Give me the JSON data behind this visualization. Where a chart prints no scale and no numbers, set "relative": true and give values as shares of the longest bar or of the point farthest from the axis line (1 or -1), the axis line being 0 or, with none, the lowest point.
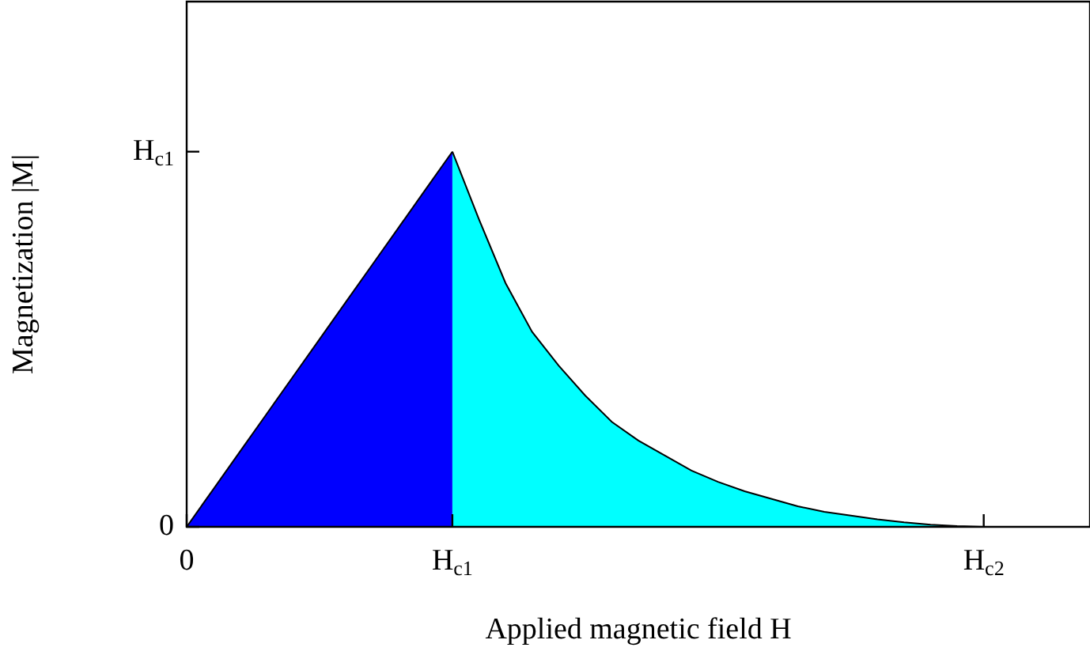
{
  "chart_data": {
    "type": "area",
    "xlabel": "Applied magnetic field H",
    "ylabel": "Magnetization |M|",
    "relative": true,
    "categories": [
      "0",
      null,
      null,
      null,
      null,
      null,
      null,
      null,
      null,
      null,
      "H$_{c1}$",
      null,
      null,
      null,
      null,
      null,
      null,
      null,
      null,
      null,
      null,
      null,
      null,
      null,
      null,
      null,
      null,
      null,
      null,
      null,
      "H$_{c2}$",
      null,
      null,
      null,
      null
    ],
    "series": [
      {
        "color": "#0000ff",
        "values": [
          0,
          0.1,
          0.2,
          0.3,
          0.4,
          0.5,
          0.6,
          0.7,
          0.8,
          0.9,
          1,
          null,
          null,
          null,
          null,
          null,
          null,
          null,
          null,
          null,
          null,
          null,
          null,
          null,
          null,
          null,
          null,
          null,
          null,
          null,
          null,
          null,
          null,
          null,
          null
        ]
      },
      {
        "color": "#00ffff",
        "values": [
          null,
          null,
          null,
          null,
          null,
          null,
          null,
          null,
          null,
          null,
          1,
          0.82,
          0.65,
          0.52,
          0.43,
          0.35,
          0.28,
          0.23,
          0.19,
          0.15,
          0.12,
          0.095,
          0.075,
          0.055,
          0.04,
          0.03,
          0.02,
          0.012,
          0.006,
          0.002,
          0,
          null,
          null,
          null,
          null
        ]
      }
    ],
    "annotations": [
      "0",
      "H$_{c1}$"
    ],
    "grid": false,
    "legend": false
  }
}
